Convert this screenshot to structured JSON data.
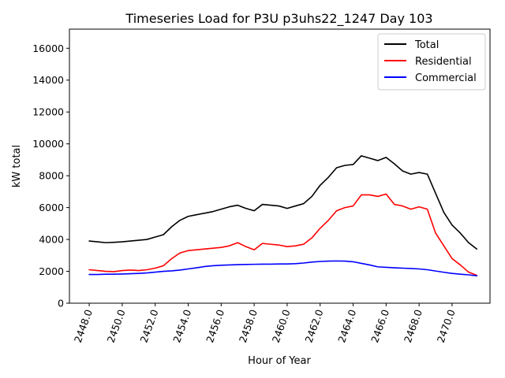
{
  "chart_data": {
    "type": "line",
    "title": "Timeseries Load for P3U p3uhs22_1247  Day 103",
    "xlabel": "Hour of Year",
    "ylabel": "kW total",
    "xlim": [
      2446.8,
      2472.3
    ],
    "ylim": [
      0,
      17200
    ],
    "xticks": [
      2448,
      2450,
      2452,
      2454,
      2456,
      2458,
      2460,
      2462,
      2464,
      2466,
      2468,
      2470
    ],
    "xtick_labels": [
      "2448.0",
      "2450.0",
      "2452.0",
      "2454.0",
      "2456.0",
      "2458.0",
      "2460.0",
      "2462.0",
      "2464.0",
      "2466.0",
      "2468.0",
      "2470.0"
    ],
    "yticks": [
      0,
      2000,
      4000,
      6000,
      8000,
      10000,
      12000,
      14000,
      16000
    ],
    "ytick_labels": [
      "0",
      "2000",
      "4000",
      "6000",
      "8000",
      "10000",
      "12000",
      "14000",
      "16000"
    ],
    "legend_position": "top-right",
    "series": [
      {
        "name": "Total",
        "color": "#000000",
        "x": [
          2448.0,
          2448.5,
          2449.0,
          2449.5,
          2450.0,
          2450.5,
          2451.0,
          2451.5,
          2452.0,
          2452.5,
          2453.0,
          2453.5,
          2454.0,
          2454.5,
          2455.0,
          2455.5,
          2456.0,
          2456.5,
          2457.0,
          2457.5,
          2458.0,
          2458.5,
          2459.0,
          2459.5,
          2460.0,
          2460.5,
          2461.0,
          2461.5,
          2462.0,
          2462.5,
          2463.0,
          2463.5,
          2464.0,
          2464.5,
          2465.0,
          2465.5,
          2466.0,
          2466.5,
          2467.0,
          2467.5,
          2468.0,
          2468.5,
          2469.0,
          2469.5,
          2470.0,
          2470.5,
          2471.0,
          2471.5
        ],
        "values": [
          3900,
          3850,
          3800,
          3820,
          3850,
          3900,
          3950,
          4000,
          4150,
          4300,
          4800,
          5200,
          5450,
          5550,
          5650,
          5750,
          5900,
          6050,
          6150,
          5950,
          5800,
          6200,
          6150,
          6100,
          5950,
          6100,
          6250,
          6700,
          7400,
          7900,
          8500,
          8650,
          8700,
          9250,
          9100,
          8950,
          9150,
          8750,
          8300,
          8100,
          8200,
          8100,
          6900,
          5700,
          4900,
          4400,
          3800,
          3400
        ]
      },
      {
        "name": "Residential",
        "color": "#ff0000",
        "x": [
          2448.0,
          2448.5,
          2449.0,
          2449.5,
          2450.0,
          2450.5,
          2451.0,
          2451.5,
          2452.0,
          2452.5,
          2453.0,
          2453.5,
          2454.0,
          2454.5,
          2455.0,
          2455.5,
          2456.0,
          2456.5,
          2457.0,
          2457.5,
          2458.0,
          2458.5,
          2459.0,
          2459.5,
          2460.0,
          2460.5,
          2461.0,
          2461.5,
          2462.0,
          2462.5,
          2463.0,
          2463.5,
          2464.0,
          2464.5,
          2465.0,
          2465.5,
          2466.0,
          2466.5,
          2467.0,
          2467.5,
          2468.0,
          2468.5,
          2469.0,
          2469.5,
          2470.0,
          2470.5,
          2471.0,
          2471.5
        ],
        "values": [
          2100,
          2050,
          2000,
          1980,
          2050,
          2080,
          2050,
          2100,
          2200,
          2350,
          2800,
          3150,
          3300,
          3350,
          3400,
          3450,
          3500,
          3600,
          3800,
          3550,
          3350,
          3750,
          3700,
          3650,
          3550,
          3600,
          3700,
          4100,
          4700,
          5200,
          5800,
          6000,
          6100,
          6800,
          6800,
          6700,
          6850,
          6200,
          6100,
          5900,
          6050,
          5900,
          4400,
          3600,
          2800,
          2400,
          1950,
          1750
        ]
      },
      {
        "name": "Commercial",
        "color": "#0000ff",
        "x": [
          2448.0,
          2448.5,
          2449.0,
          2449.5,
          2450.0,
          2450.5,
          2451.0,
          2451.5,
          2452.0,
          2452.5,
          2453.0,
          2453.5,
          2454.0,
          2454.5,
          2455.0,
          2455.5,
          2456.0,
          2456.5,
          2457.0,
          2457.5,
          2458.0,
          2458.5,
          2459.0,
          2459.5,
          2460.0,
          2460.5,
          2461.0,
          2461.5,
          2462.0,
          2462.5,
          2463.0,
          2463.5,
          2464.0,
          2464.5,
          2465.0,
          2465.5,
          2466.0,
          2466.5,
          2467.0,
          2467.5,
          2468.0,
          2468.5,
          2469.0,
          2469.5,
          2470.0,
          2470.5,
          2471.0,
          2471.5
        ],
        "values": [
          1800,
          1800,
          1820,
          1820,
          1830,
          1850,
          1870,
          1900,
          1950,
          2000,
          2030,
          2080,
          2150,
          2220,
          2300,
          2350,
          2380,
          2400,
          2420,
          2430,
          2440,
          2450,
          2450,
          2460,
          2460,
          2480,
          2520,
          2580,
          2620,
          2640,
          2650,
          2640,
          2600,
          2500,
          2400,
          2280,
          2250,
          2220,
          2200,
          2180,
          2150,
          2100,
          2020,
          1940,
          1870,
          1820,
          1780,
          1720
        ]
      }
    ]
  }
}
